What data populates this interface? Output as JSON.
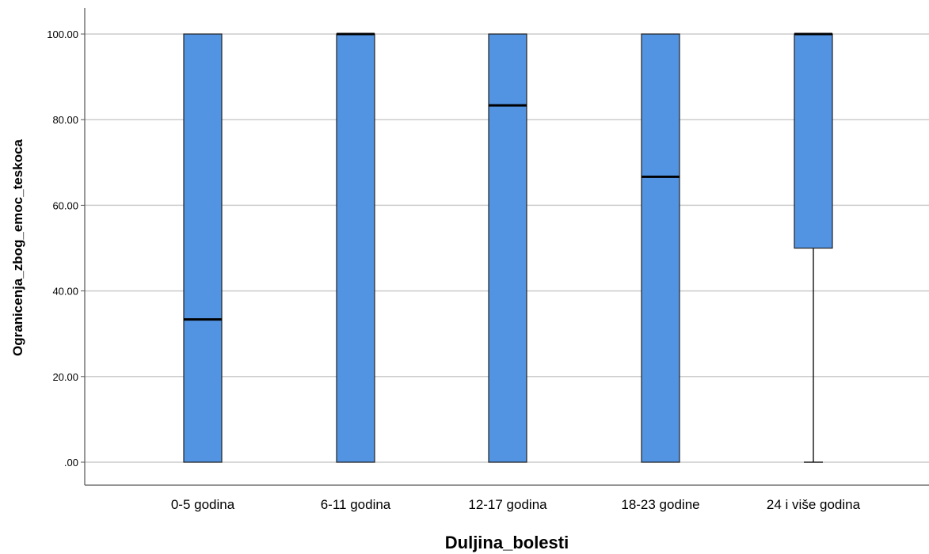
{
  "chart_data": {
    "type": "boxplot",
    "ylabel": "Ogranicenja_zbog_emoc_teskoca",
    "xlabel": "Duljina_bolesti",
    "ylim": [
      -5,
      105
    ],
    "yticks": [
      0,
      20,
      40,
      60,
      80,
      100
    ],
    "ytick_labels": [
      ".00",
      "20.00",
      "40.00",
      "60.00",
      "80.00",
      "100.00"
    ],
    "grid": "horizontal",
    "box_color": "#5294e2",
    "categories": [
      "0-5 godina",
      "6-11 godina",
      "12-17 godina",
      "18-23 godine",
      "24 i više godina"
    ],
    "boxes": [
      {
        "category": "0-5 godina",
        "whisker_low": 0,
        "q1": 0,
        "median": 33.33,
        "q3": 100,
        "whisker_high": 100
      },
      {
        "category": "6-11 godina",
        "whisker_low": 0,
        "q1": 0,
        "median": 100,
        "q3": 100,
        "whisker_high": 100
      },
      {
        "category": "12-17 godina",
        "whisker_low": 0,
        "q1": 0,
        "median": 83.33,
        "q3": 100,
        "whisker_high": 100
      },
      {
        "category": "18-23 godine",
        "whisker_low": 0,
        "q1": 0,
        "median": 66.67,
        "q3": 100,
        "whisker_high": 100
      },
      {
        "category": "24 i više godina",
        "whisker_low": 0,
        "q1": 50,
        "median": 100,
        "q3": 100,
        "whisker_high": 100
      }
    ]
  }
}
